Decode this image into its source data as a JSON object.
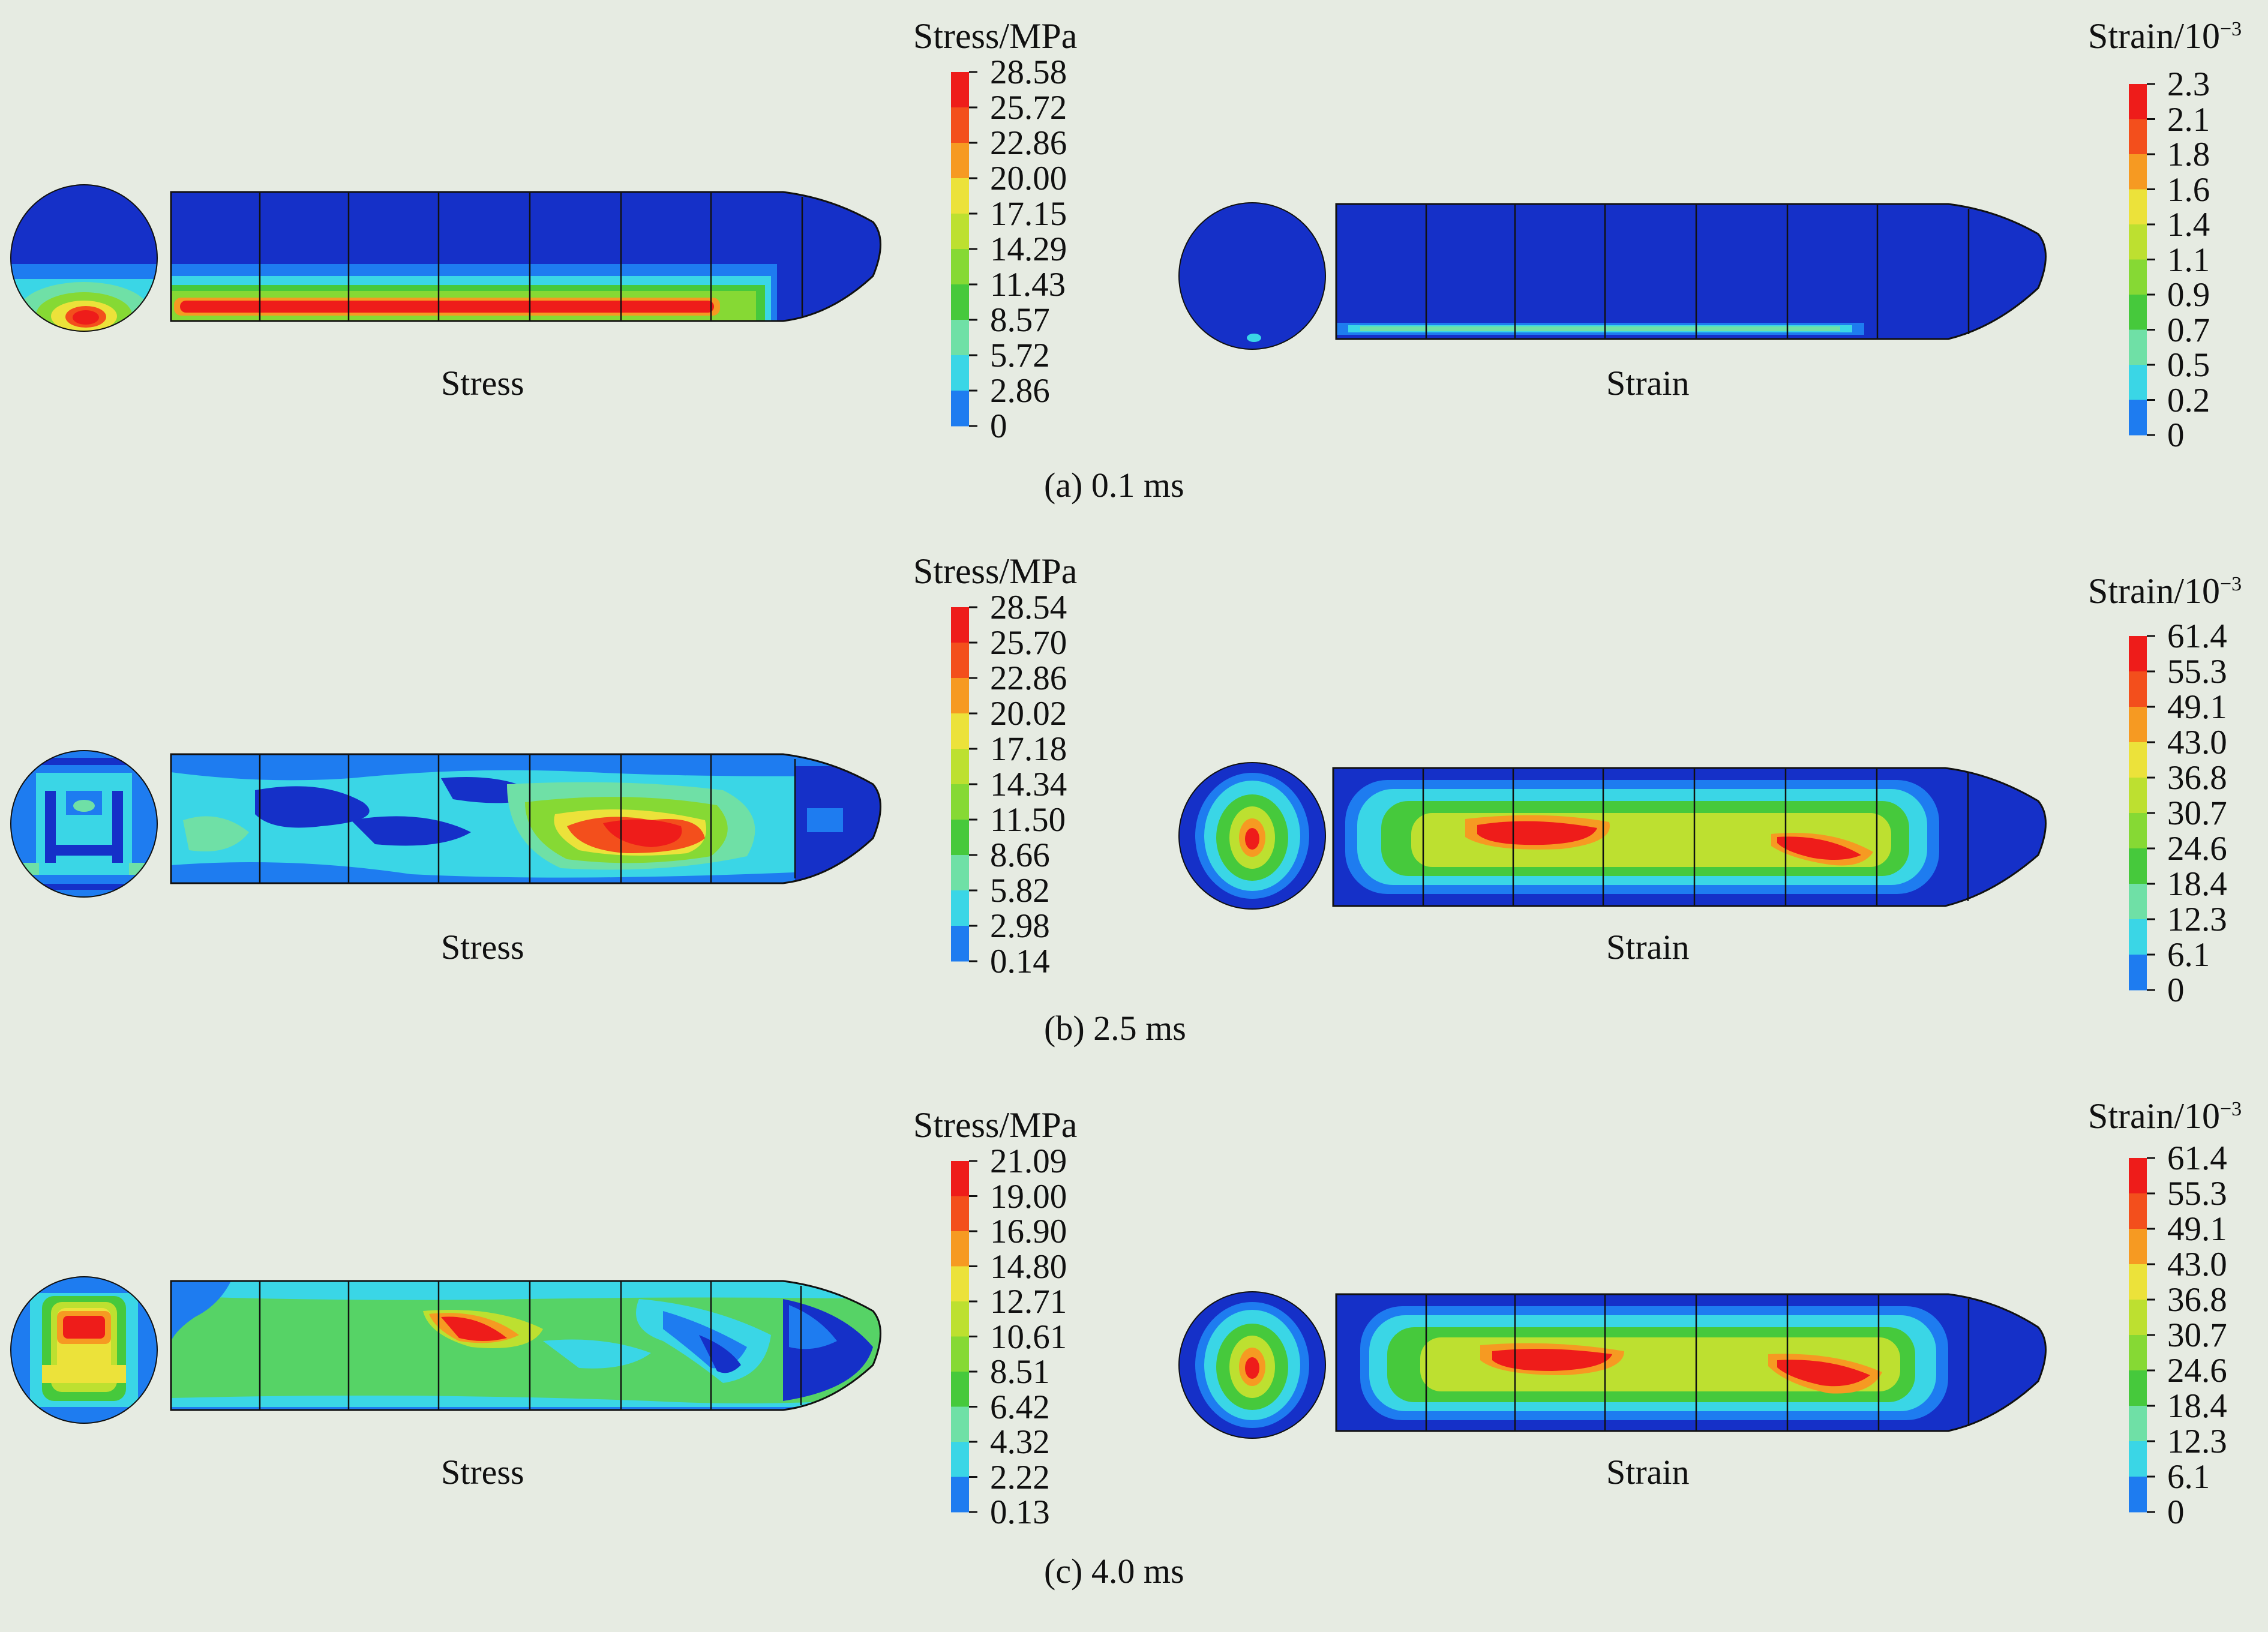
{
  "colors": {
    "background": "#e6ebe2",
    "scale": [
      "#1530c8",
      "#1e7cf0",
      "#3ad6e6",
      "#6fe0a6",
      "#46c93c",
      "#86d934",
      "#bde030",
      "#ece23a",
      "#f69a22",
      "#f34f1c",
      "#ee1c1a"
    ]
  },
  "panels": [
    {
      "caption": "(a) 0.1 ms",
      "stress": {
        "label": "Stress",
        "legend_title": "Stress/MPa",
        "ticks": [
          "28.58",
          "25.72",
          "22.86",
          "20.00",
          "17.15",
          "14.29",
          "11.43",
          "8.57",
          "5.72",
          "2.86",
          "0"
        ]
      },
      "strain": {
        "label": "Strain",
        "legend_title": "Strain/10",
        "legend_exponent": "−3",
        "ticks": [
          "2.3",
          "2.1",
          "1.8",
          "1.6",
          "1.4",
          "1.1",
          "0.9",
          "0.7",
          "0.5",
          "0.2",
          "0"
        ]
      }
    },
    {
      "caption": "(b) 2.5 ms",
      "stress": {
        "label": "Stress",
        "legend_title": "Stress/MPa",
        "ticks": [
          "28.54",
          "25.70",
          "22.86",
          "20.02",
          "17.18",
          "14.34",
          "11.50",
          "8.66",
          "5.82",
          "2.98",
          "0.14"
        ]
      },
      "strain": {
        "label": "Strain",
        "legend_title": "Strain/10",
        "legend_exponent": "−3",
        "ticks": [
          "61.4",
          "55.3",
          "49.1",
          "43.0",
          "36.8",
          "30.7",
          "24.6",
          "18.4",
          "12.3",
          "6.1",
          "0"
        ]
      }
    },
    {
      "caption": "(c) 4.0 ms",
      "stress": {
        "label": "Stress",
        "legend_title": "Stress/MPa",
        "ticks": [
          "21.09",
          "19.00",
          "16.90",
          "14.80",
          "12.71",
          "10.61",
          "8.51",
          "6.42",
          "4.32",
          "2.22",
          "0.13"
        ]
      },
      "strain": {
        "label": "Strain",
        "legend_title": "Strain/10",
        "legend_exponent": "−3",
        "ticks": [
          "61.4",
          "55.3",
          "49.1",
          "43.0",
          "36.8",
          "30.7",
          "24.6",
          "18.4",
          "12.3",
          "6.1",
          "0"
        ]
      }
    }
  ]
}
